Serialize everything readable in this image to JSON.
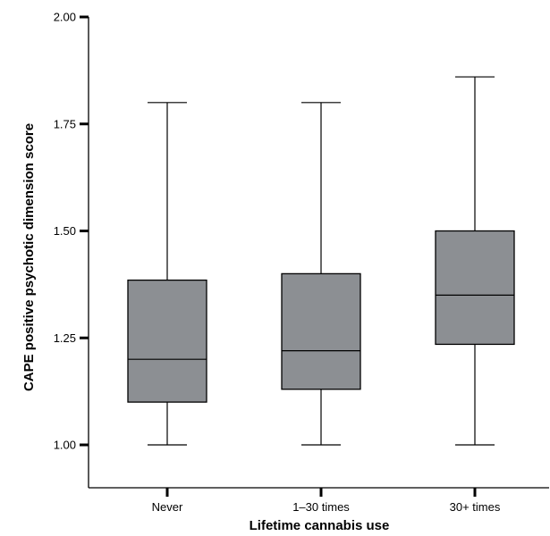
{
  "chart_data": {
    "type": "boxplot",
    "title": "",
    "xlabel": "Lifetime cannabis use",
    "ylabel": "CAPE positive psychotic dimension score",
    "ylim": [
      1.0,
      2.0
    ],
    "yticks": [
      "1.00",
      "1.25",
      "1.50",
      "1.75",
      "2.00"
    ],
    "ytick_values": [
      1.0,
      1.25,
      1.5,
      1.75,
      2.0
    ],
    "grid": false,
    "colors": {
      "box_fill": "#8c8f93",
      "stroke": "#000000"
    },
    "categories": [
      "Never",
      "1–30 times",
      "30+ times"
    ],
    "boxes": [
      {
        "category": "Never",
        "min": 1.0,
        "q1": 1.1,
        "median": 1.2,
        "q3": 1.385,
        "max": 1.8
      },
      {
        "category": "1–30 times",
        "min": 1.0,
        "q1": 1.13,
        "median": 1.22,
        "q3": 1.4,
        "max": 1.8
      },
      {
        "category": "30+ times",
        "min": 1.0,
        "q1": 1.235,
        "median": 1.35,
        "q3": 1.5,
        "max": 1.86
      }
    ]
  }
}
